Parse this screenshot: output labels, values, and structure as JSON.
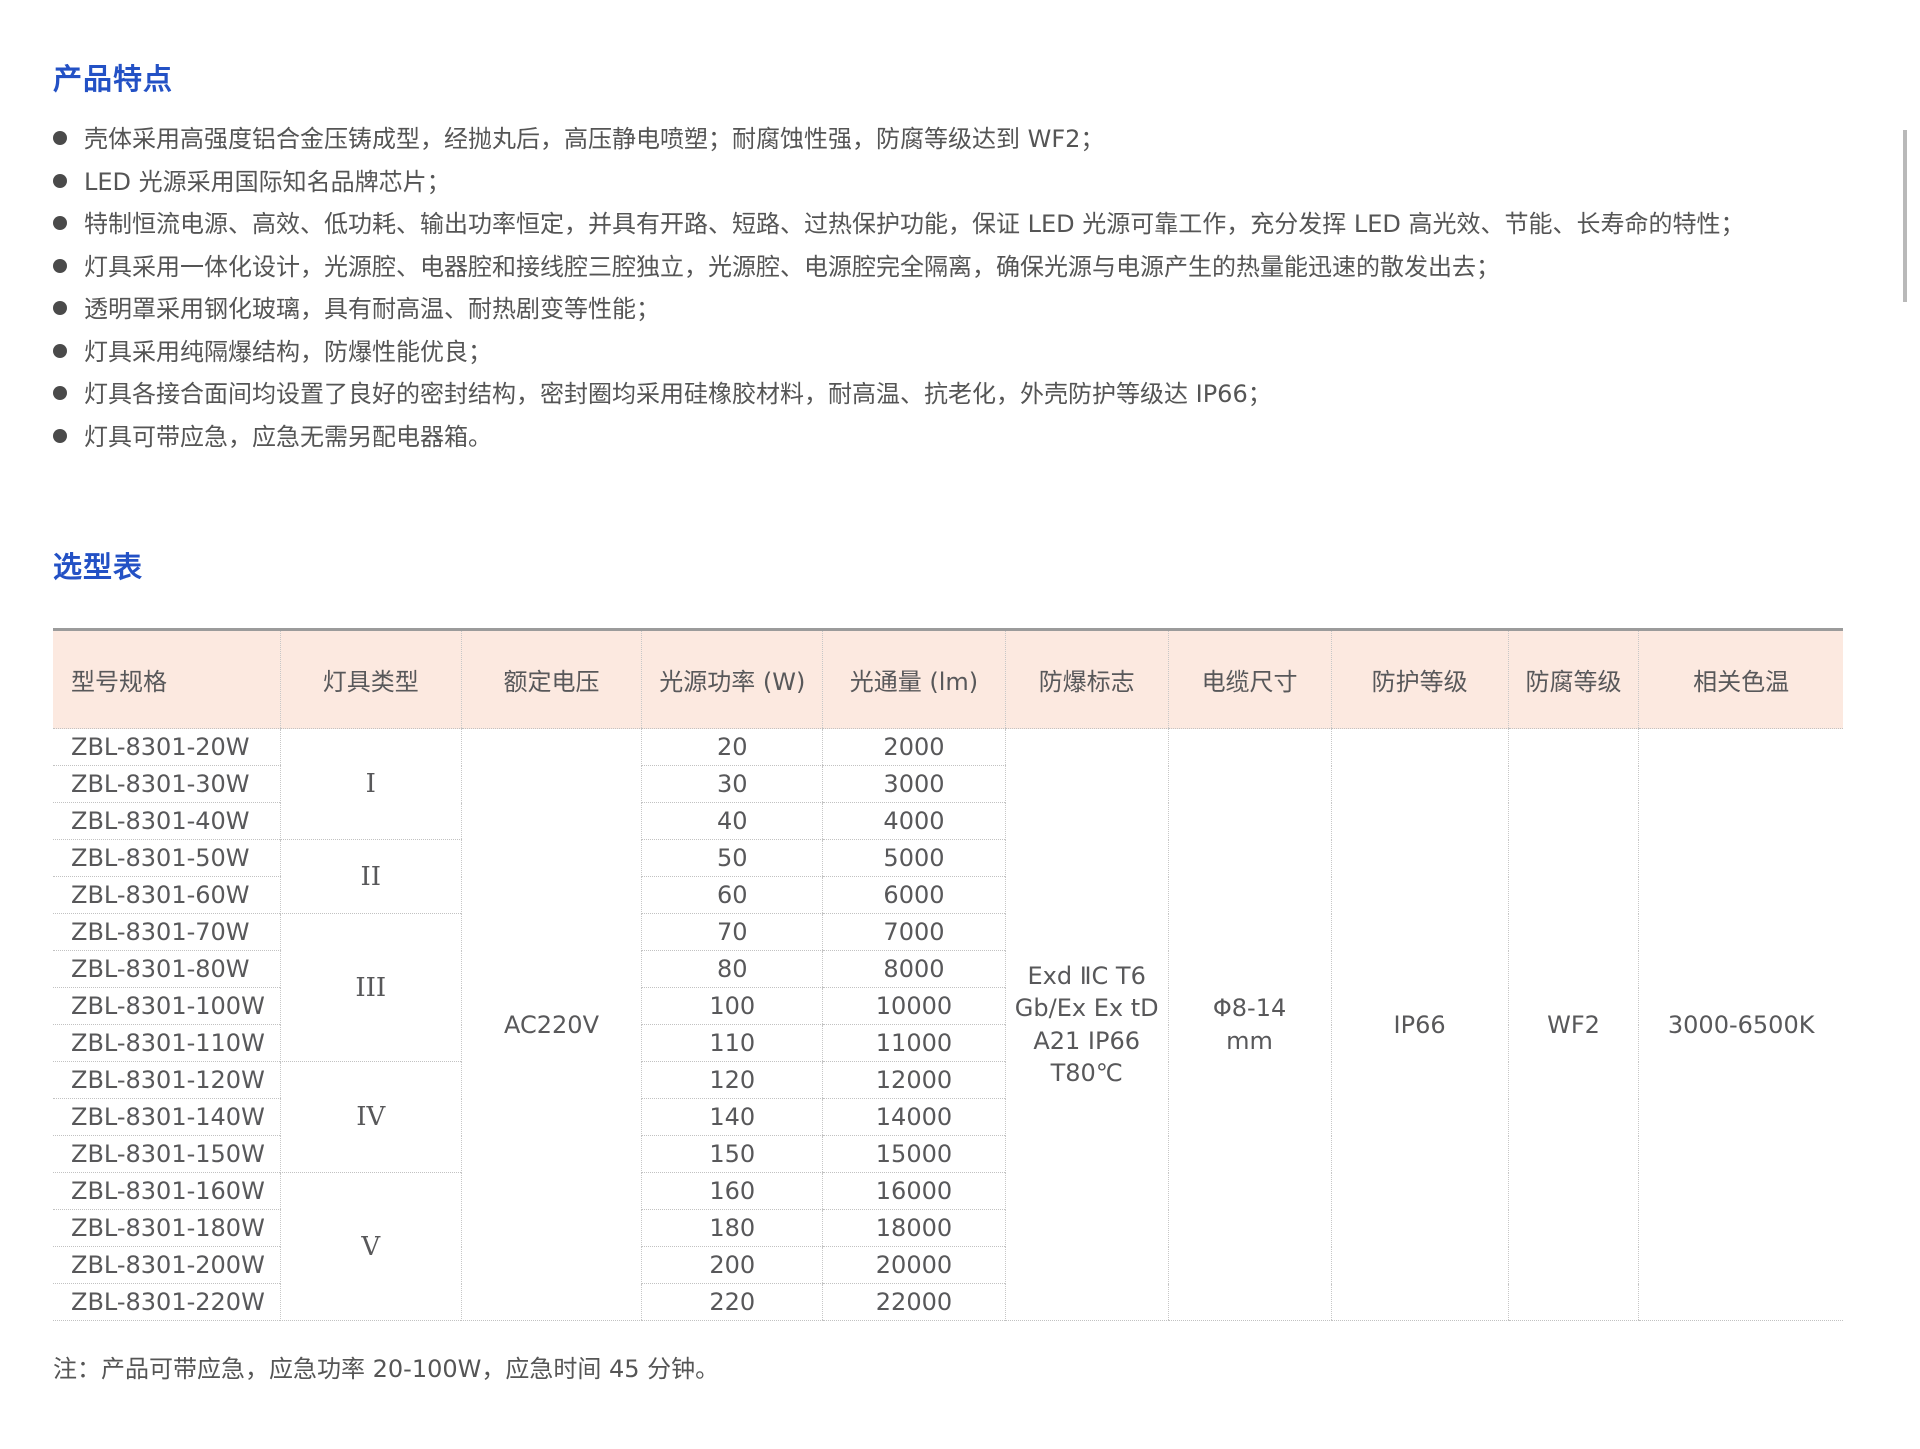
{
  "features": {
    "title": "产品特点",
    "items": [
      "壳体采用高强度铝合金压铸成型，经抛丸后，高压静电喷塑；耐腐蚀性强，防腐等级达到 WF2；",
      "LED 光源采用国际知名品牌芯片；",
      "特制恒流电源、高效、低功耗、输出功率恒定，并具有开路、短路、过热保护功能，保证 LED 光源可靠工作，充分发挥 LED 高光效、节能、长寿命的特性；",
      "灯具采用一体化设计，光源腔、电器腔和接线腔三腔独立，光源腔、电源腔完全隔离，确保光源与电源产生的热量能迅速的散发出去；",
      "透明罩采用钢化玻璃，具有耐高温、耐热剧变等性能；",
      "灯具采用纯隔爆结构，防爆性能优良；",
      "灯具各接合面间均设置了良好的密封结构，密封圈均采用硅橡胶材料，耐高温、抗老化，外壳防护等级达 IP66；",
      "灯具可带应急，应急无需另配电器箱。"
    ]
  },
  "selection": {
    "title": "选型表",
    "note": "注：产品可带应急，应急功率 20-100W，应急时间 45 分钟。"
  },
  "table": {
    "headers": [
      "型号规格",
      "灯具类型",
      "额定电压",
      "光源功率 (W)",
      "光通量 (lm)",
      "防爆标志",
      "电缆尺寸",
      "防护等级",
      "防腐等级",
      "相关色温"
    ],
    "groups": [
      {
        "label": "I",
        "span": 3
      },
      {
        "label": "II",
        "span": 2
      },
      {
        "label": "III",
        "span": 4
      },
      {
        "label": "IV",
        "span": 3
      },
      {
        "label": "V",
        "span": 4
      }
    ],
    "rows": [
      {
        "model": "ZBL-8301-20W",
        "power": "20",
        "flux": "2000"
      },
      {
        "model": "ZBL-8301-30W",
        "power": "30",
        "flux": "3000"
      },
      {
        "model": "ZBL-8301-40W",
        "power": "40",
        "flux": "4000"
      },
      {
        "model": "ZBL-8301-50W",
        "power": "50",
        "flux": "5000"
      },
      {
        "model": "ZBL-8301-60W",
        "power": "60",
        "flux": "6000"
      },
      {
        "model": "ZBL-8301-70W",
        "power": "70",
        "flux": "7000"
      },
      {
        "model": "ZBL-8301-80W",
        "power": "80",
        "flux": "8000"
      },
      {
        "model": "ZBL-8301-100W",
        "power": "100",
        "flux": "10000"
      },
      {
        "model": "ZBL-8301-110W",
        "power": "110",
        "flux": "11000"
      },
      {
        "model": "ZBL-8301-120W",
        "power": "120",
        "flux": "12000"
      },
      {
        "model": "ZBL-8301-140W",
        "power": "140",
        "flux": "14000"
      },
      {
        "model": "ZBL-8301-150W",
        "power": "150",
        "flux": "15000"
      },
      {
        "model": "ZBL-8301-160W",
        "power": "160",
        "flux": "16000"
      },
      {
        "model": "ZBL-8301-180W",
        "power": "180",
        "flux": "18000"
      },
      {
        "model": "ZBL-8301-200W",
        "power": "200",
        "flux": "20000"
      },
      {
        "model": "ZBL-8301-220W",
        "power": "220",
        "flux": "22000"
      }
    ],
    "shared": {
      "voltage": "AC220V",
      "explosion_mark_lines": [
        "Exd ⅡC T6",
        "Gb/Ex Ex tD",
        "A21 IP66",
        "T80℃"
      ],
      "cable_size_lines": [
        "Φ8-14",
        "mm"
      ],
      "protection": "IP66",
      "anticorrosion": "WF2",
      "color_temp": "3000-6500K"
    }
  },
  "colors": {
    "accent_blue": "#2351c5",
    "table_header_bg": "#fce9e0",
    "body_text": "#555555",
    "table_text": "#58585a"
  }
}
